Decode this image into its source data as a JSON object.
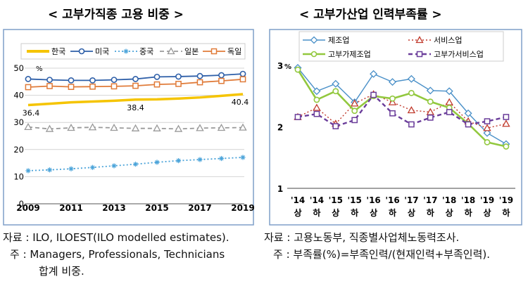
{
  "titles": {
    "left": "< 고부가직종 고용 비중 >",
    "right": "< 고부가산업 인력부족률 >"
  },
  "notes": {
    "left_source": "자료 : ILO, ILOEST(ILO modelled estimates).",
    "left_note_1": "주 : Managers, Professionals, Technicians",
    "left_note_2": "합계 비중.",
    "right_source": "자료 : 고용노동부, 직종별사업체노동력조사.",
    "right_note": "주 : 부족률(%)=부족인력/(현재인력+부족인력)."
  },
  "chart_data": [
    {
      "type": "line",
      "x": [
        2009,
        2010,
        2011,
        2012,
        2013,
        2014,
        2015,
        2016,
        2017,
        2018,
        2019
      ],
      "xticks": [
        "2009",
        "2011",
        "2013",
        "2015",
        "2017",
        "2019"
      ],
      "ylim": [
        0,
        50
      ],
      "yticks": [
        "0",
        "10",
        "20",
        "30",
        "40",
        "50"
      ],
      "yunit": "%",
      "grid": true,
      "legend": "top",
      "series": [
        {
          "name": "한국",
          "color": "#f5c400",
          "marker": "none",
          "dash": "solid",
          "values": [
            36.4,
            36.9,
            37.4,
            37.7,
            38.0,
            38.4,
            38.5,
            38.8,
            39.2,
            39.8,
            40.4
          ]
        },
        {
          "name": "미국",
          "color": "#2e5fa8",
          "marker": "circle",
          "dash": "solid",
          "values": [
            46.0,
            45.7,
            45.5,
            45.5,
            45.7,
            46.0,
            46.8,
            46.9,
            47.1,
            47.4,
            47.9
          ]
        },
        {
          "name": "중국",
          "color": "#4aa3d9",
          "marker": "star",
          "dash": "dot",
          "values": [
            12.2,
            12.5,
            12.9,
            13.4,
            14.0,
            14.6,
            15.3,
            15.9,
            16.3,
            16.7,
            17.1
          ]
        },
        {
          "name": "일본",
          "color": "#999999",
          "marker": "triangle",
          "dash": "dash",
          "values": [
            28.3,
            27.6,
            28.0,
            28.2,
            28.0,
            27.8,
            27.8,
            27.6,
            27.9,
            28.0,
            28.1
          ]
        },
        {
          "name": "독일",
          "color": "#e07b39",
          "marker": "square",
          "dash": "solid",
          "values": [
            43.0,
            43.4,
            43.1,
            43.2,
            43.3,
            43.5,
            44.0,
            44.2,
            44.8,
            45.3,
            45.9
          ]
        }
      ],
      "data_labels": [
        {
          "series": "한국",
          "x": 2009,
          "text": "36.4"
        },
        {
          "series": "한국",
          "x": 2014,
          "text": "38.4"
        },
        {
          "series": "한국",
          "x": 2019,
          "text": "40.4"
        }
      ]
    },
    {
      "type": "line",
      "categories": [
        "'14 상",
        "'14 하",
        "'15 상",
        "'15 하",
        "'16 상",
        "'16 하",
        "'17 상",
        "'17 하",
        "'18 상",
        "'18 하",
        "'19 상",
        "'19 하"
      ],
      "xticks_top": [
        "'14",
        "'14",
        "'15",
        "'15",
        "'16",
        "'16",
        "'17",
        "'17",
        "'18",
        "'18",
        "'19",
        "'19"
      ],
      "xticks_bottom": [
        "상",
        "하",
        "상",
        "하",
        "상",
        "하",
        "상",
        "하",
        "상",
        "하",
        "상",
        "하"
      ],
      "ylim": [
        1,
        3
      ],
      "yticks": [
        "1",
        "2",
        "3"
      ],
      "yunit": "%",
      "grid": false,
      "legend": "top",
      "series": [
        {
          "name": "제조업",
          "color": "#4a90c8",
          "marker": "diamond",
          "dash": "solid",
          "width": 1.4,
          "values": [
            2.96,
            2.58,
            2.7,
            2.4,
            2.86,
            2.73,
            2.78,
            2.59,
            2.58,
            2.22,
            1.9,
            1.72
          ]
        },
        {
          "name": "서비스업",
          "color": "#c0392b",
          "marker": "triangle",
          "dash": "dot",
          "width": 1.4,
          "values": [
            2.16,
            2.31,
            2.05,
            2.38,
            2.53,
            2.4,
            2.27,
            2.24,
            2.4,
            2.09,
            1.98,
            2.05
          ]
        },
        {
          "name": "고부가제조업",
          "color": "#92c83e",
          "marker": "circle",
          "dash": "solid",
          "width": 2.6,
          "values": [
            2.93,
            2.44,
            2.58,
            2.26,
            2.5,
            2.46,
            2.55,
            2.41,
            2.31,
            2.05,
            1.75,
            1.68
          ]
        },
        {
          "name": "고부가서비스업",
          "color": "#6a3d9a",
          "marker": "square",
          "dash": "dash",
          "width": 2.4,
          "values": [
            2.16,
            2.21,
            2.01,
            2.11,
            2.52,
            2.22,
            2.04,
            2.15,
            2.24,
            2.04,
            2.09,
            2.16
          ]
        }
      ]
    }
  ]
}
